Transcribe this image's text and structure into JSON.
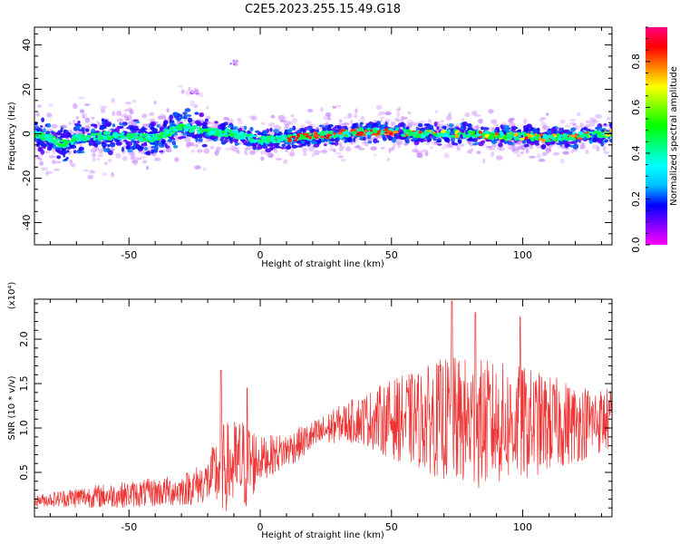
{
  "title": "C2E5.2023.255.15.49.G18",
  "chart_data": [
    {
      "type": "heatmap",
      "xlabel": "Height of straight line (km)",
      "ylabel": "Frequency (Hz)",
      "xlim": [
        -86,
        134
      ],
      "ylim": [
        -50,
        48
      ],
      "xticks": [
        -50,
        0,
        50,
        100
      ],
      "yticks": [
        -40,
        -20,
        0,
        20,
        40
      ],
      "colorbar": {
        "label": "Normalized spectral amplitude",
        "range": [
          0,
          0.95
        ],
        "ticks": [
          "0.0",
          "0.2",
          "0.4",
          "0.6",
          "0.8"
        ],
        "colormap": [
          "#ff00ff",
          "#8000ff",
          "#0000ff",
          "#00c0ff",
          "#00ffff",
          "#00ff80",
          "#00ff00",
          "#80ff00",
          "#ffff00",
          "#ff8000",
          "#ff0000",
          "#ff0080"
        ]
      },
      "ridge": {
        "x": [
          -86,
          -80,
          -75,
          -70,
          -60,
          -50,
          -40,
          -30,
          -25,
          -20,
          -10,
          0,
          10,
          20,
          30,
          40,
          50,
          60,
          70,
          80,
          90,
          100,
          110,
          120,
          134
        ],
        "y": [
          0,
          -2,
          -5,
          -2,
          -1,
          -1,
          -2,
          3,
          2,
          1,
          0,
          -3,
          -2,
          -1,
          0,
          1,
          1,
          0,
          0,
          0,
          -1,
          -1,
          -2,
          -1,
          0
        ]
      },
      "outliers": [
        {
          "x": -25,
          "y": 19
        },
        {
          "x": -10,
          "y": 32
        }
      ]
    },
    {
      "type": "line",
      "xlabel": "Height of straight line (km)",
      "ylabel": "SNR (10 * v/v)",
      "multiplier": "(x10⁴)",
      "xlim": [
        -86,
        134
      ],
      "ylim": [
        0,
        2.45
      ],
      "xticks": [
        -50,
        0,
        50,
        100
      ],
      "yticks": [
        0.5,
        1.0,
        1.5,
        2.0
      ],
      "ytick_labels": [
        "0.5",
        "1.0",
        "1.5",
        "2.0"
      ],
      "color": "#ee3333",
      "envelope": {
        "x": [
          -86,
          -70,
          -50,
          -30,
          -20,
          -15,
          -5,
          0,
          10,
          20,
          30,
          40,
          50,
          60,
          70,
          80,
          90,
          100,
          110,
          120,
          134
        ],
        "mean": [
          0.18,
          0.22,
          0.25,
          0.3,
          0.4,
          0.55,
          0.6,
          0.65,
          0.75,
          0.9,
          1.05,
          1.1,
          1.1,
          1.1,
          1.1,
          1.05,
          1.05,
          1.05,
          1.05,
          1.05,
          1.1
        ],
        "amp": [
          0.06,
          0.12,
          0.15,
          0.18,
          0.25,
          0.5,
          0.55,
          0.25,
          0.2,
          0.18,
          0.2,
          0.3,
          0.45,
          0.55,
          0.7,
          0.75,
          0.7,
          0.65,
          0.55,
          0.45,
          0.35
        ]
      },
      "peaks": [
        {
          "x": -15,
          "y": 1.65
        },
        {
          "x": -5,
          "y": 1.45
        },
        {
          "x": 73,
          "y": 2.43
        },
        {
          "x": 82,
          "y": 2.3
        },
        {
          "x": 99,
          "y": 2.25
        }
      ]
    }
  ]
}
